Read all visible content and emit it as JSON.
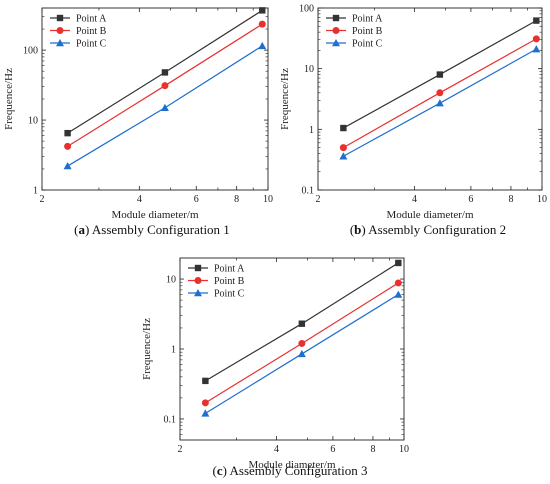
{
  "figure": {
    "panels": [
      {
        "caption_letter": "a",
        "caption_text": "Assembly Configuration 1"
      },
      {
        "caption_letter": "b",
        "caption_text": "Assembly Configuration 2"
      },
      {
        "caption_letter": "c",
        "caption_text": "Assembly Configuration 3"
      }
    ]
  },
  "colors": {
    "point_a": "#333333",
    "point_b": "#e8302f",
    "point_c": "#1f6fd1"
  },
  "chart_data": [
    {
      "type": "line",
      "xscale": "log",
      "yscale": "log",
      "xlabel": "Module diameter/m",
      "ylabel": "Frequence/Hz",
      "xlim": [
        2,
        10
      ],
      "ylim": [
        1,
        400
      ],
      "x_ticks": [
        2,
        4,
        6,
        8,
        10
      ],
      "x_tick_labels": [
        "2",
        "4",
        "6",
        "8",
        "10"
      ],
      "y_ticks": [
        1,
        10,
        100
      ],
      "y_tick_labels": [
        "1",
        "10",
        "100"
      ],
      "legend": "top-left",
      "series": [
        {
          "name": "Point A",
          "marker": "square",
          "x": [
            2.4,
            4.8,
            9.6
          ],
          "values": [
            6.5,
            48,
            370
          ]
        },
        {
          "name": "Point B",
          "marker": "circle",
          "x": [
            2.4,
            4.8,
            9.6
          ],
          "values": [
            4.2,
            31,
            235
          ]
        },
        {
          "name": "Point C",
          "marker": "triangle",
          "x": [
            2.4,
            4.8,
            9.6
          ],
          "values": [
            2.2,
            15,
            115
          ]
        }
      ]
    },
    {
      "type": "line",
      "xscale": "log",
      "yscale": "log",
      "xlabel": "Module diameter/m",
      "ylabel": "Frequence/Hz",
      "xlim": [
        2,
        10
      ],
      "ylim": [
        0.1,
        100
      ],
      "x_ticks": [
        2,
        4,
        6,
        8,
        10
      ],
      "x_tick_labels": [
        "2",
        "4",
        "6",
        "8",
        "10"
      ],
      "y_ticks": [
        0.1,
        1,
        10,
        100
      ],
      "y_tick_labels": [
        "0.1",
        "1",
        "10",
        "100"
      ],
      "legend": "top-left",
      "series": [
        {
          "name": "Point A",
          "marker": "square",
          "x": [
            2.4,
            4.8,
            9.6
          ],
          "values": [
            1.05,
            8,
            62
          ]
        },
        {
          "name": "Point B",
          "marker": "circle",
          "x": [
            2.4,
            4.8,
            9.6
          ],
          "values": [
            0.5,
            4,
            31
          ]
        },
        {
          "name": "Point C",
          "marker": "triangle",
          "x": [
            2.4,
            4.8,
            9.6
          ],
          "values": [
            0.36,
            2.7,
            21
          ]
        }
      ]
    },
    {
      "type": "line",
      "xscale": "log",
      "yscale": "log",
      "xlabel": "Module diameter/m",
      "ylabel": "Frequence/Hz",
      "xlim": [
        2,
        10
      ],
      "ylim": [
        0.05,
        20
      ],
      "x_ticks": [
        2,
        4,
        6,
        8,
        10
      ],
      "x_tick_labels": [
        "2",
        "4",
        "6",
        "8",
        "10"
      ],
      "y_ticks": [
        0.1,
        1,
        10
      ],
      "y_tick_labels": [
        "0.1",
        "1",
        "10"
      ],
      "legend": "top-left",
      "series": [
        {
          "name": "Point A",
          "marker": "square",
          "x": [
            2.4,
            4.8,
            9.6
          ],
          "values": [
            0.35,
            2.3,
            17
          ]
        },
        {
          "name": "Point B",
          "marker": "circle",
          "x": [
            2.4,
            4.8,
            9.6
          ],
          "values": [
            0.17,
            1.2,
            8.8
          ]
        },
        {
          "name": "Point C",
          "marker": "triangle",
          "x": [
            2.4,
            4.8,
            9.6
          ],
          "values": [
            0.12,
            0.85,
            6
          ]
        }
      ]
    }
  ]
}
